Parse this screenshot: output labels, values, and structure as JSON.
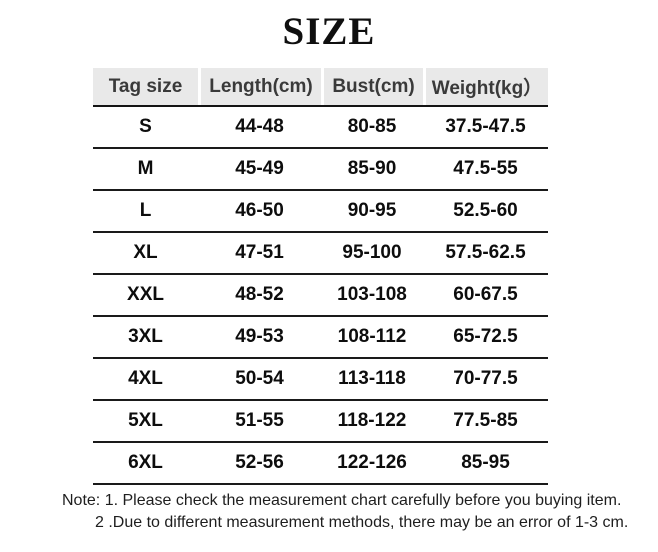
{
  "title": "SIZE",
  "table": {
    "headers": [
      "Tag size",
      "Length(cm)",
      "Bust(cm)",
      "Weight(kg）"
    ],
    "rows": [
      [
        "S",
        "44-48",
        "80-85",
        "37.5-47.5"
      ],
      [
        "M",
        "45-49",
        "85-90",
        "47.5-55"
      ],
      [
        "L",
        "46-50",
        "90-95",
        "52.5-60"
      ],
      [
        "XL",
        "47-51",
        "95-100",
        "57.5-62.5"
      ],
      [
        "XXL",
        "48-52",
        "103-108",
        "60-67.5"
      ],
      [
        "3XL",
        "49-53",
        "108-112",
        "65-72.5"
      ],
      [
        "4XL",
        "50-54",
        "113-118",
        "70-77.5"
      ],
      [
        "5XL",
        "51-55",
        "118-122",
        "77.5-85"
      ],
      [
        "6XL",
        "52-56",
        "122-126",
        "85-95"
      ]
    ]
  },
  "notes": {
    "line1": "Note: 1. Please check the measurement chart carefully before you buying item.",
    "line2": "2 .Due to different measurement methods, there may be an error of 1-3 cm."
  },
  "colors": {
    "header_background": "#e9e9e9",
    "header_text": "#3a3a3a",
    "body_text": "#0d0d0d",
    "separator_line": "#1a1a1a",
    "page_background": "#ffffff"
  }
}
